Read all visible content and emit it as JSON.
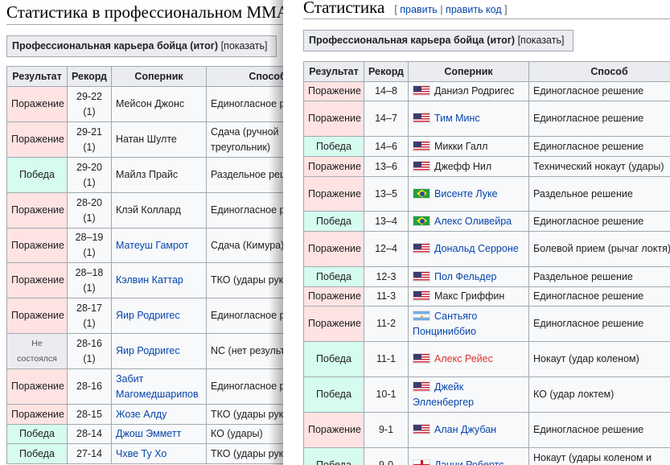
{
  "left": {
    "title": "Статистика в профессиональном MMA",
    "summary": {
      "label": "Профессиональная карьера бойца (итог)",
      "toggle": "[показать]"
    },
    "columns": [
      "Результат",
      "Рекорд",
      "Соперник",
      "Способ"
    ],
    "rows": [
      {
        "result": "Поражение",
        "type": "loss",
        "record": "29-22 (1)",
        "opponent": "Мейсон Джонс",
        "link": false,
        "method": "Единогласное решение"
      },
      {
        "result": "Поражение",
        "type": "loss",
        "record": "29-21 (1)",
        "opponent": "Натан Шулте",
        "link": false,
        "method": "Сдача (ручной треугольник)"
      },
      {
        "result": "Победа",
        "type": "win",
        "record": "29-20 (1)",
        "opponent": "Майлз Прайс",
        "link": false,
        "method": "Раздельное решение"
      },
      {
        "result": "Поражение",
        "type": "loss",
        "record": "28-20 (1)",
        "opponent": "Клэй Коллард",
        "link": false,
        "method": "Единогласное решение"
      },
      {
        "result": "Поражение",
        "type": "loss",
        "record": "28–19 (1)",
        "opponent": "Матеуш Гамрот",
        "link": true,
        "method": "Сдача (Кимура)"
      },
      {
        "result": "Поражение",
        "type": "loss",
        "record": "28–18 (1)",
        "opponent": "Кэлвин Каттар",
        "link": true,
        "method": "ТКО (удары руками)"
      },
      {
        "result": "Поражение",
        "type": "loss",
        "record": "28-17 (1)",
        "opponent": "Яир Родригес",
        "link": true,
        "method": "Единогласное решение"
      },
      {
        "result": "Не состоялся",
        "type": "nc",
        "record": "28-16 (1)",
        "opponent": "Яир Родригес",
        "link": true,
        "method": "NC (нет результата)"
      },
      {
        "result": "Поражение",
        "type": "loss",
        "record": "28-16",
        "opponent": "Забит Магомедшарипов",
        "link": true,
        "method": "Единогласное решение"
      },
      {
        "result": "Поражение",
        "type": "loss",
        "record": "28-15",
        "opponent": "Жозе Алду",
        "link": true,
        "method": "ТКО (удары руками)"
      },
      {
        "result": "Победа",
        "type": "win",
        "record": "28-14",
        "opponent": "Джош Эмметт",
        "link": true,
        "method": "КО (удары)"
      },
      {
        "result": "Победа",
        "type": "win",
        "record": "27-14",
        "opponent": "Чхве Ту Хо",
        "link": true,
        "method": "ТКО (удары руками)"
      }
    ]
  },
  "right": {
    "title": "Статистика",
    "edit": {
      "open": "[",
      "edit": "править",
      "sep": "|",
      "edit_code": "править код",
      "close": "]"
    },
    "summary": {
      "label": "Профессиональная карьера бойца (итог)",
      "toggle": "[показать]"
    },
    "columns": [
      "Результат",
      "Рекорд",
      "Соперник",
      "Способ"
    ],
    "rows": [
      {
        "result": "Поражение",
        "type": "loss",
        "record": "14–8",
        "flag": "us",
        "opponent": "Даниэл Родригес",
        "link": "none",
        "method": "Единогласное решение"
      },
      {
        "result": "Поражение",
        "type": "loss",
        "record": "14–7",
        "flag": "us",
        "opponent": "Тим Минс",
        "link": "blue",
        "method": "Единогласное решение"
      },
      {
        "result": "Победа",
        "type": "win",
        "record": "14–6",
        "flag": "us",
        "opponent": "Микки Галл",
        "link": "none",
        "method": "Единогласное решение"
      },
      {
        "result": "Поражение",
        "type": "loss",
        "record": "13–6",
        "flag": "us",
        "opponent": "Джефф Нил",
        "link": "none",
        "method": "Технический нокаут (удары)"
      },
      {
        "result": "Поражение",
        "type": "loss",
        "record": "13–5",
        "flag": "br",
        "opponent": "Висенте Луке",
        "link": "blue",
        "method": "Раздельное решение"
      },
      {
        "result": "Победа",
        "type": "win",
        "record": "13–4",
        "flag": "br",
        "opponent": "Алекс Оливейра",
        "link": "blue",
        "method": "Единогласное решение"
      },
      {
        "result": "Поражение",
        "type": "loss",
        "record": "12–4",
        "flag": "us",
        "opponent": "Дональд Серроне",
        "link": "blue",
        "method": "Болевой прием (рычаг локтя)"
      },
      {
        "result": "Победа",
        "type": "win",
        "record": "12-3",
        "flag": "us",
        "opponent": "Пол Фельдер",
        "link": "blue",
        "method": "Раздельное решение"
      },
      {
        "result": "Поражение",
        "type": "loss",
        "record": "11-3",
        "flag": "us",
        "opponent": "Макс Гриффин",
        "link": "none",
        "method": "Единогласное решение"
      },
      {
        "result": "Поражение",
        "type": "loss",
        "record": "11-2",
        "flag": "ar",
        "opponent": "Сантьяго Понциниббио",
        "link": "blue",
        "method": "Единогласное решение"
      },
      {
        "result": "Победа",
        "type": "win",
        "record": "11-1",
        "flag": "us",
        "opponent": "Алекс Рейес",
        "link": "red",
        "method": "Нокаут (удар коленом)"
      },
      {
        "result": "Победа",
        "type": "win",
        "record": "10-1",
        "flag": "us",
        "opponent": "Джейк Элленбергер",
        "link": "blue",
        "method": "КО (удар локтем)"
      },
      {
        "result": "Поражение",
        "type": "loss",
        "record": "9-1",
        "flag": "us",
        "opponent": "Алан Джубан",
        "link": "blue",
        "method": "Единогласное решение"
      },
      {
        "result": "Победа",
        "type": "win",
        "record": "9-0",
        "flag": "en",
        "opponent": "Дэнни Робертс",
        "link": "blue",
        "method": "Нокаут (удары коленом и руками)"
      }
    ]
  },
  "colors": {
    "loss": "#ffe3e3",
    "win": "#d6fbef",
    "no_contest": "#eaecf0",
    "link": "#0645ad",
    "redlink": "#d33"
  }
}
